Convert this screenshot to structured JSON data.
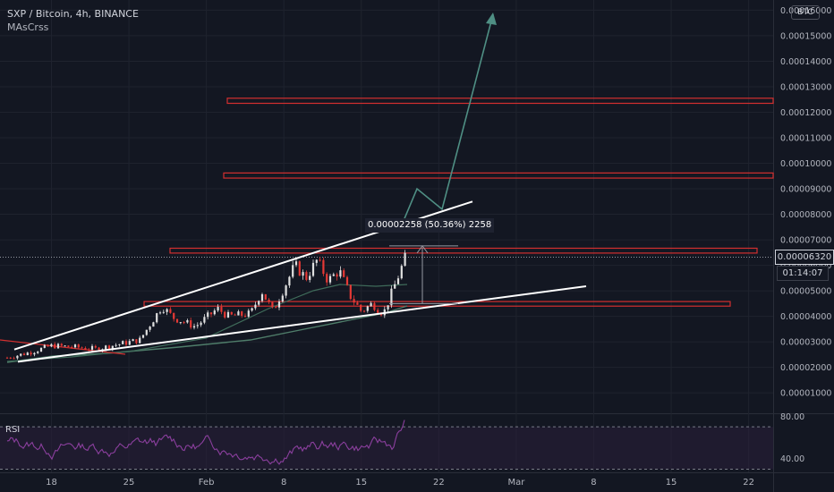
{
  "legend": {
    "symbol": "SXP / Bitcoin, 4h, BINANCE",
    "indicator": "MAsCrss"
  },
  "currency_button": "BTC",
  "last_price_label": "0.00006320",
  "countdown_label": "01:14:07",
  "measure_label": "0.00002258 (50.36%) 2258",
  "rsi_label": "RSI",
  "colors": {
    "background": "#131722",
    "text": "#b2b5be",
    "grid": "#1f232e",
    "zone_border": "#d32f2f",
    "trendline": "#ffffff",
    "projection": "#4f8f84",
    "ma_line": "#4f7d6a",
    "rsi_line": "#8b3f9e",
    "rsi_band": "#2a1f3a",
    "candle_up": "#e0e0e0",
    "candle_down": "#e53935"
  },
  "chart_data": [
    {
      "type": "candlestick",
      "title": "SXP / Bitcoin, 4h, BINANCE",
      "y_axis_ticks": [
        "0.00001000",
        "0.00002000",
        "0.00003000",
        "0.00004000",
        "0.00005000",
        "0.00006000",
        "0.00007000",
        "0.00008000",
        "0.00009000",
        "0.00010000",
        "0.00011000",
        "0.00012000",
        "0.00013000",
        "0.00014000",
        "0.00015000",
        "0.00016000"
      ],
      "ylim": [
        2e-06,
        0.000164
      ],
      "x_axis_ticks": [
        "18",
        "25",
        "Feb",
        "8",
        "15",
        "22",
        "Mar",
        "8",
        "15",
        "22"
      ],
      "x_range": [
        "2021-01-14",
        "2021-03-23"
      ],
      "last_price": 6.32e-05,
      "close_series": {
        "name": "SXP/BTC close (approx)",
        "points": [
          [
            "2021-01-14",
            2.38e-05
          ],
          [
            "2021-01-16",
            2.58e-05
          ],
          [
            "2021-01-18",
            2.85e-05
          ],
          [
            "2021-01-20",
            2.8e-05
          ],
          [
            "2021-01-22",
            2.72e-05
          ],
          [
            "2021-01-24",
            2.9e-05
          ],
          [
            "2021-01-26",
            3.08e-05
          ],
          [
            "2021-01-28",
            4.4e-05
          ],
          [
            "2021-01-29",
            3.95e-05
          ],
          [
            "2021-01-31",
            3.6e-05
          ],
          [
            "2021-02-02",
            4.3e-05
          ],
          [
            "2021-02-03",
            4e-05
          ],
          [
            "2021-02-05",
            4.1e-05
          ],
          [
            "2021-02-06",
            5e-05
          ],
          [
            "2021-02-07",
            4.2e-05
          ],
          [
            "2021-02-08",
            5.1e-05
          ],
          [
            "2021-02-09",
            6e-05
          ],
          [
            "2021-02-10",
            5.5e-05
          ],
          [
            "2021-02-11",
            6.2e-05
          ],
          [
            "2021-02-12",
            5.4e-05
          ],
          [
            "2021-02-13",
            5.8e-05
          ],
          [
            "2021-02-14",
            4.8e-05
          ],
          [
            "2021-02-15",
            4.2e-05
          ],
          [
            "2021-02-16",
            4.5e-05
          ],
          [
            "2021-02-17",
            4.1e-05
          ],
          [
            "2021-02-18",
            5.2e-05
          ],
          [
            "2021-02-19",
            6.32e-05
          ]
        ]
      },
      "support_resistance_zones": [
        {
          "from": 0.0001235,
          "to": 0.0001255
        },
        {
          "from": 9.42e-05,
          "to": 9.62e-05
        },
        {
          "from": 6.48e-05,
          "to": 6.67e-05
        },
        {
          "from": 4.4e-05,
          "to": 4.58e-05
        }
      ],
      "trendlines": {
        "upper": [
          [
            "2021-01-14",
            2.7e-05
          ],
          [
            "2021-02-24",
            8.5e-05
          ]
        ],
        "lower": [
          [
            "2021-01-14",
            2.22e-05
          ],
          [
            "2021-03-09",
            5.18e-05
          ]
        ]
      },
      "measure": {
        "from": 4.5e-05,
        "to": 6.76e-05,
        "text": "0.00002258 (50.36%) 2258"
      },
      "projection_path": [
        [
          "2021-02-18",
          7.5e-05
        ],
        [
          "2021-02-20",
          9e-05
        ],
        [
          "2021-02-22",
          8.2e-05
        ],
        [
          "2021-02-28",
          0.000159
        ]
      ]
    },
    {
      "type": "line",
      "title": "RSI",
      "y_axis_ticks": [
        "80.00",
        "40.00"
      ],
      "ylim": [
        27,
        82
      ],
      "overbought": 70,
      "oversold": 30
    }
  ]
}
